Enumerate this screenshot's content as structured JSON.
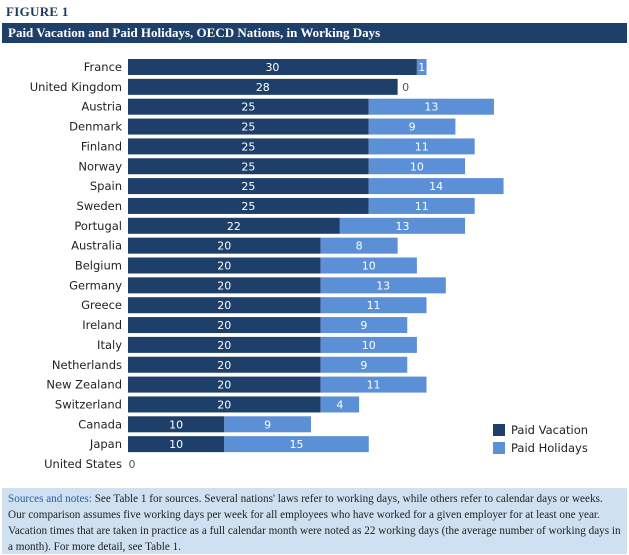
{
  "figure_label": "FIGURE 1",
  "title": "Paid Vacation and Paid Holidays, OECD Nations, in Working Days",
  "notes": {
    "lead": "Sources and notes:",
    "text": " See Table 1 for sources. Several nations' laws refer to working days, while others refer to calendar days or weeks. Our comparison assumes five working days per week for all employees who have worked for a given employer for at least one year. Vacation times that are taken in practice as a full calendar month were noted as 22 working days (the average number of working days in a month). For more detail, see Table 1."
  },
  "colors": {
    "vacation": "#1f3f6b",
    "holidays": "#5b8fd6"
  },
  "chart_data": {
    "type": "bar",
    "orientation": "horizontal",
    "stacked": true,
    "categories": [
      "France",
      "United Kingdom",
      "Austria",
      "Denmark",
      "Finland",
      "Norway",
      "Spain",
      "Sweden",
      "Portugal",
      "Australia",
      "Belgium",
      "Germany",
      "Greece",
      "Ireland",
      "Italy",
      "Netherlands",
      "New Zealand",
      "Switzerland",
      "Canada",
      "Japan",
      "United States"
    ],
    "series": [
      {
        "name": "Paid Vacation",
        "values": [
          30,
          28,
          25,
          25,
          25,
          25,
          25,
          25,
          22,
          20,
          20,
          20,
          20,
          20,
          20,
          20,
          20,
          20,
          10,
          10,
          0
        ]
      },
      {
        "name": "Paid Holidays",
        "values": [
          1,
          0,
          13,
          9,
          11,
          10,
          14,
          11,
          13,
          8,
          10,
          13,
          11,
          9,
          10,
          9,
          11,
          4,
          9,
          15,
          0
        ]
      }
    ],
    "xlim": [
      0,
      45
    ],
    "grid": false,
    "legend": "bottom-right"
  }
}
